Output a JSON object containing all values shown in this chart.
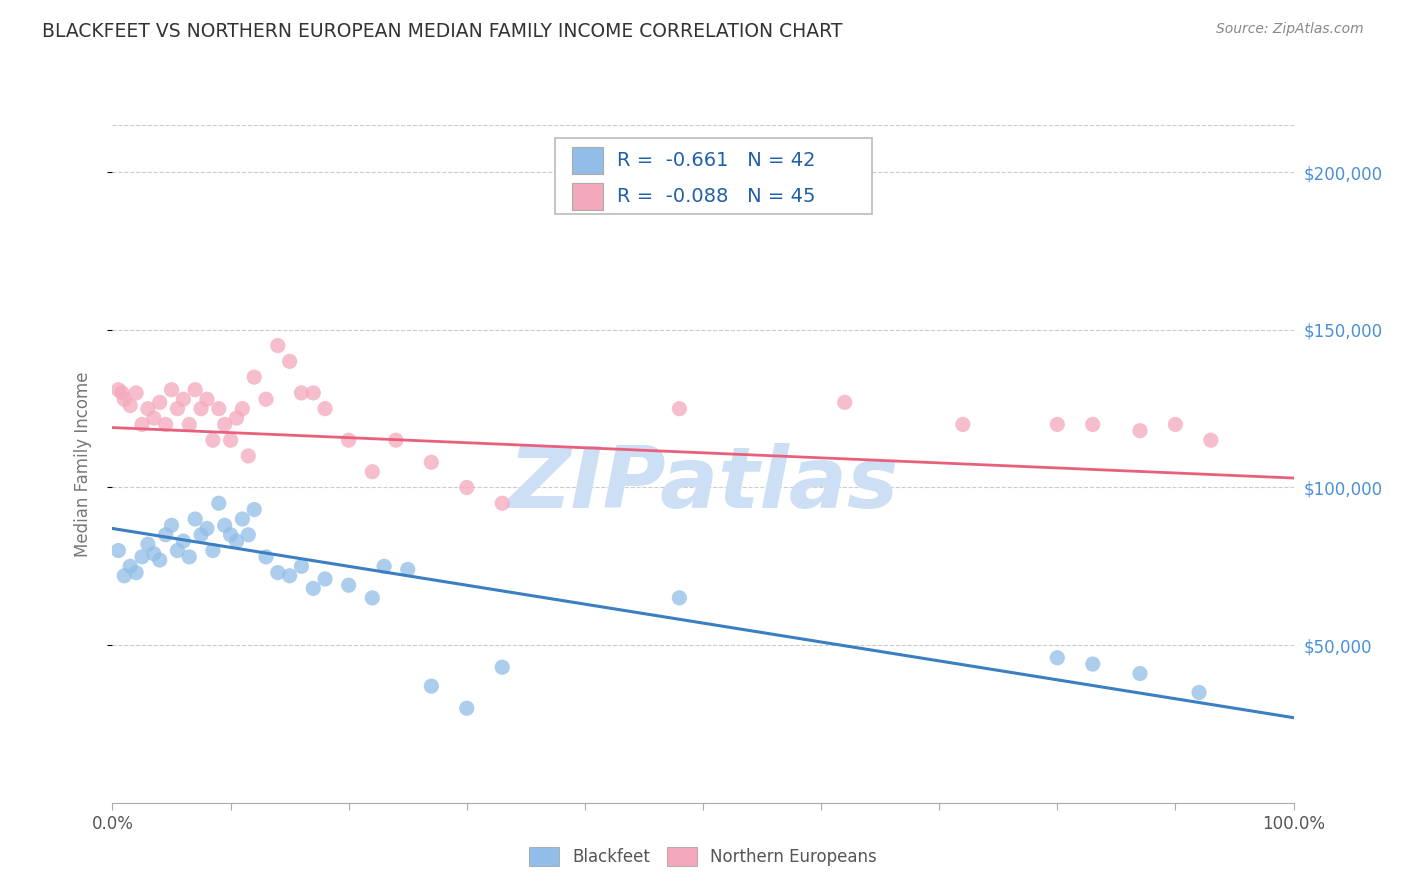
{
  "title": "BLACKFEET VS NORTHERN EUROPEAN MEDIAN FAMILY INCOME CORRELATION CHART",
  "source": "Source: ZipAtlas.com",
  "ylabel": "Median Family Income",
  "ytick_labels": [
    "$50,000",
    "$100,000",
    "$150,000",
    "$200,000"
  ],
  "ytick_values": [
    50000,
    100000,
    150000,
    200000
  ],
  "ylim": [
    0,
    215000
  ],
  "xlim": [
    0.0,
    1.0
  ],
  "blue_R": "-0.661",
  "blue_N": "42",
  "pink_R": "-0.088",
  "pink_N": "45",
  "blue_color": "#92bde8",
  "pink_color": "#f4a8bb",
  "blue_line_color": "#3a7fc1",
  "pink_line_color": "#e8607a",
  "watermark_top": "ZIP",
  "watermark_bot": "atlas",
  "watermark_color": "#cddff5",
  "blue_scatter_x": [
    0.005,
    0.01,
    0.015,
    0.02,
    0.025,
    0.03,
    0.035,
    0.04,
    0.045,
    0.05,
    0.055,
    0.06,
    0.065,
    0.07,
    0.075,
    0.08,
    0.085,
    0.09,
    0.095,
    0.1,
    0.105,
    0.11,
    0.115,
    0.12,
    0.13,
    0.14,
    0.15,
    0.16,
    0.17,
    0.18,
    0.2,
    0.22,
    0.23,
    0.25,
    0.27,
    0.3,
    0.33,
    0.48,
    0.8,
    0.83,
    0.87,
    0.92
  ],
  "blue_scatter_y": [
    80000,
    72000,
    75000,
    73000,
    78000,
    82000,
    79000,
    77000,
    85000,
    88000,
    80000,
    83000,
    78000,
    90000,
    85000,
    87000,
    80000,
    95000,
    88000,
    85000,
    83000,
    90000,
    85000,
    93000,
    78000,
    73000,
    72000,
    75000,
    68000,
    71000,
    69000,
    65000,
    75000,
    74000,
    37000,
    30000,
    43000,
    65000,
    46000,
    44000,
    41000,
    35000
  ],
  "pink_scatter_x": [
    0.005,
    0.008,
    0.01,
    0.015,
    0.02,
    0.025,
    0.03,
    0.035,
    0.04,
    0.045,
    0.05,
    0.055,
    0.06,
    0.065,
    0.07,
    0.075,
    0.08,
    0.085,
    0.09,
    0.095,
    0.1,
    0.105,
    0.11,
    0.115,
    0.12,
    0.13,
    0.14,
    0.15,
    0.16,
    0.17,
    0.18,
    0.2,
    0.22,
    0.24,
    0.27,
    0.3,
    0.33,
    0.48,
    0.62,
    0.72,
    0.8,
    0.83,
    0.87,
    0.9,
    0.93
  ],
  "pink_scatter_y": [
    131000,
    130000,
    128000,
    126000,
    130000,
    120000,
    125000,
    122000,
    127000,
    120000,
    131000,
    125000,
    128000,
    120000,
    131000,
    125000,
    128000,
    115000,
    125000,
    120000,
    115000,
    122000,
    125000,
    110000,
    135000,
    128000,
    145000,
    140000,
    130000,
    130000,
    125000,
    115000,
    105000,
    115000,
    108000,
    100000,
    95000,
    125000,
    127000,
    120000,
    120000,
    120000,
    118000,
    120000,
    115000
  ],
  "blue_line_x": [
    0.0,
    1.0
  ],
  "blue_line_y": [
    87000,
    27000
  ],
  "pink_line_x": [
    0.0,
    1.0
  ],
  "pink_line_y": [
    119000,
    103000
  ],
  "legend_label_blue": "Blackfeet",
  "legend_label_pink": "Northern Europeans",
  "bg_color": "#ffffff",
  "grid_color": "#cccccc",
  "title_color": "#333333",
  "axis_label_color": "#777777",
  "right_tick_color": "#4a90d9"
}
